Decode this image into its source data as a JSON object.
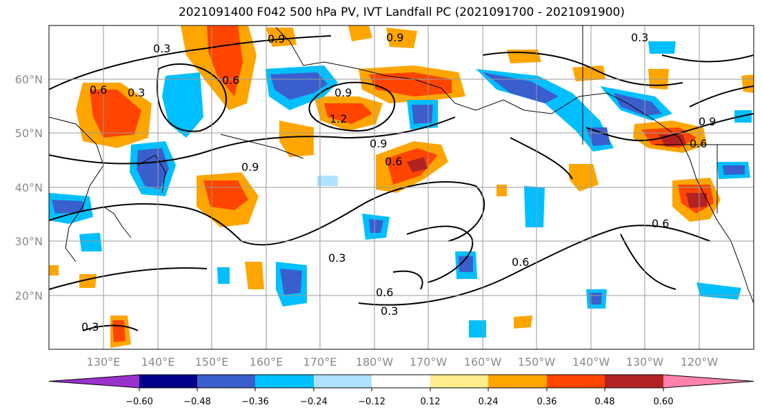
{
  "title": "2021091400 F042 500 hPa PV, IVT Landfall PC (2021091700 - 2021091900)",
  "lat_labels": [
    "60°N",
    "50°N",
    "40°N",
    "30°N",
    "20°N"
  ],
  "lon_labels": [
    "130°E",
    "140°E",
    "150°E",
    "160°E",
    "170°E",
    "180°W",
    "170°W",
    "160°W",
    "150°W",
    "140°W",
    "130°W",
    "120°W"
  ],
  "colorbar": {
    "ticks": [
      "−0.60",
      "−0.48",
      "−0.36",
      "−0.24",
      "−0.12",
      "0.12",
      "0.24",
      "0.36",
      "0.48",
      "0.60"
    ],
    "colors": [
      "#9932cc",
      "#00008b",
      "#3a5fcd",
      "#00bfff",
      "#b0e2ff",
      "#ffffff",
      "#ffec8b",
      "#ffa500",
      "#ff4500",
      "#b22222",
      "#ff82ab"
    ]
  },
  "contour_labels": [
    "0.3",
    "0.9",
    "0.6",
    "0.9",
    "0.3",
    "0.6",
    "0.9",
    "1.2",
    "0.9",
    "0.9",
    "0.6",
    "0.6",
    "0.9",
    "0.3",
    "0.3",
    "0.6",
    "0.6",
    "0.6",
    "0.3",
    "0.3"
  ]
}
